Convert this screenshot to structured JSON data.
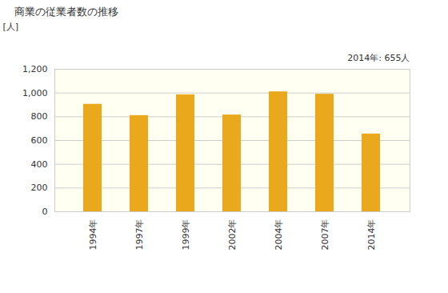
{
  "chart_data": {
    "type": "bar",
    "title": "商業の従業者数の推移",
    "y_label": "[人]",
    "annotation": "2014年: 655人",
    "categories": [
      "1994年",
      "1997年",
      "1999年",
      "2002年",
      "2004年",
      "2007年",
      "2014年"
    ],
    "values": [
      905,
      810,
      985,
      815,
      1010,
      990,
      655
    ],
    "color": "#eaa81c",
    "ylim": [
      0,
      1200
    ],
    "yticks": [
      0,
      200,
      400,
      600,
      800,
      {
        "value": 1000,
        "label": "1,000"
      },
      {
        "value": 1200,
        "label": "1,200"
      }
    ],
    "grid": true
  }
}
